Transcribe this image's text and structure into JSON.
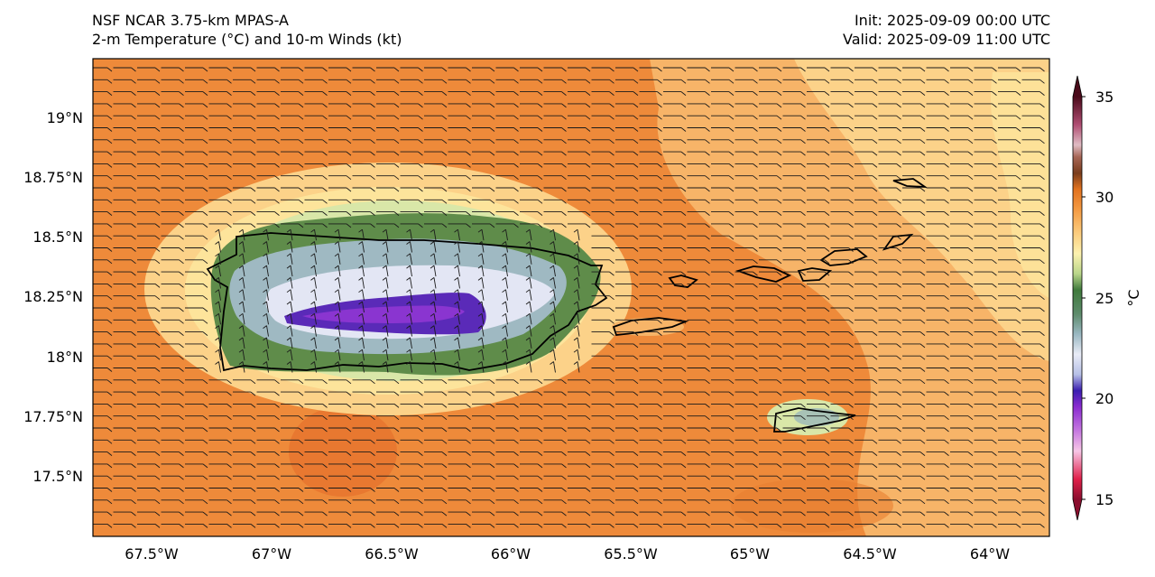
{
  "header": {
    "model": "NSF NCAR 3.75-km MPAS-A",
    "field": "2-m Temperature (°C) and 10-m Winds (kt)",
    "init": "Init: 2025-09-09 00:00 UTC",
    "valid": "Valid: 2025-09-09 11:00 UTC"
  },
  "map": {
    "lon_range": [
      -67.75,
      -63.75
    ],
    "lat_range": [
      17.25,
      19.25
    ],
    "lon_ticks": [
      "67.5°W",
      "67°W",
      "66.5°W",
      "66°W",
      "65.5°W",
      "65°W",
      "64.5°W",
      "64°W"
    ],
    "lat_ticks": [
      "19°N",
      "18.75°N",
      "18.5°N",
      "18.25°N",
      "18°N",
      "17.75°N",
      "17.5°N"
    ],
    "wind_direction": "easterly (barbs from the east)",
    "colors": {
      "ocean_warm": "#ee8a3a",
      "ocean_light": "#f7b468",
      "coast_pale": "#fde49b",
      "land_green": "#5f8c4a",
      "land_mist": "#9fb9c2",
      "interior_pale": "#e3e6f4",
      "cold_core": "#5a2ab8",
      "coastline": "#000000"
    }
  },
  "colorbar": {
    "label": "°C",
    "ticks": [
      "15",
      "20",
      "25",
      "30",
      "35"
    ],
    "min": 15,
    "max": 35,
    "extend": "both"
  }
}
